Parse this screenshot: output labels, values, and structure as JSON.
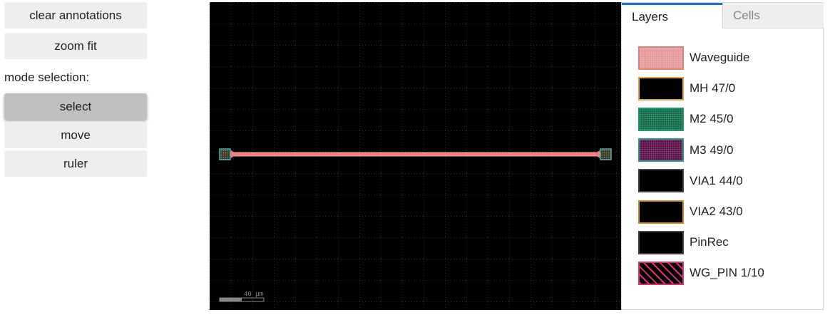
{
  "toolbar": {
    "clear_annotations_label": "clear annotations",
    "zoom_fit_label": "zoom fit",
    "mode_label": "mode selection:",
    "modes": [
      {
        "label": "select",
        "active": true
      },
      {
        "label": "move",
        "active": false
      },
      {
        "label": "ruler",
        "active": false
      }
    ]
  },
  "viewer": {
    "background": "#000000",
    "grid": true,
    "scale_bar_label": "40 µm",
    "waveguide_color": "#f08080",
    "port_color": "#4fb0a8"
  },
  "panel": {
    "tabs": [
      {
        "label": "Layers",
        "active": true
      },
      {
        "label": "Cells",
        "active": false
      }
    ],
    "layers": [
      {
        "name": "Waveguide",
        "fill": "#e49a9a",
        "border": "#e47c7c",
        "pattern": "dots"
      },
      {
        "name": "MH 47/0",
        "fill": "#000000",
        "border": "#e8a33a",
        "pattern": "solid"
      },
      {
        "name": "M2 45/0",
        "fill": "#0f6b48",
        "border": "#1b9a66",
        "pattern": "dots"
      },
      {
        "name": "M3 49/0",
        "fill": "#5a0f46",
        "border": "#2c9a8e",
        "pattern": "dots"
      },
      {
        "name": "VIA1 44/0",
        "fill": "#000000",
        "border": "#444444",
        "pattern": "solid"
      },
      {
        "name": "VIA2 43/0",
        "fill": "#000000",
        "border": "#d08c2a",
        "pattern": "solid"
      },
      {
        "name": "PinRec",
        "fill": "#000000",
        "border": "#444444",
        "pattern": "solid"
      },
      {
        "name": "WG_PIN 1/10",
        "fill": "#000000",
        "border": "#e0307a",
        "pattern": "hatch"
      }
    ]
  }
}
